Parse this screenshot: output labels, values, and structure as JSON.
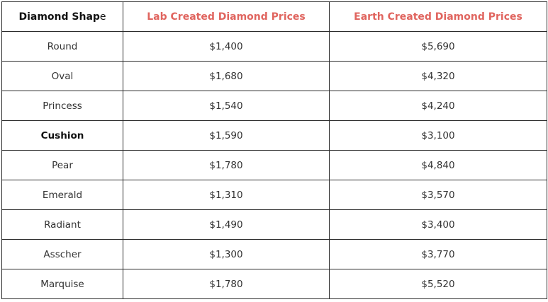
{
  "table": {
    "headers": {
      "shape_main": "Diamond Shap",
      "shape_tail": "e",
      "lab": "Lab Created Diamond Prices",
      "earth": "Earth Created Diamond Prices"
    },
    "rows": [
      {
        "shape": "Round",
        "lab": "$1,400",
        "earth": "$5,690"
      },
      {
        "shape": "Oval",
        "lab": "$1,680",
        "earth": "$4,320"
      },
      {
        "shape": "Princess",
        "lab": "$1,540",
        "earth": "$4,240"
      },
      {
        "shape": "Cushion",
        "lab": "$1,590",
        "earth": "$3,100"
      },
      {
        "shape": "Pear",
        "lab": "$1,780",
        "earth": "$4,840"
      },
      {
        "shape": "Emerald",
        "lab": "$1,310",
        "earth": "$3,570"
      },
      {
        "shape": "Radiant",
        "lab": "$1,490",
        "earth": "$3,400"
      },
      {
        "shape": "Asscher",
        "lab": "$1,300",
        "earth": "$3,770"
      },
      {
        "shape": "Marquise",
        "lab": "$1,780",
        "earth": "$5,520"
      }
    ]
  },
  "colors": {
    "header_accent": "#e0655f",
    "border": "#2b2b2b",
    "text": "#333333"
  }
}
